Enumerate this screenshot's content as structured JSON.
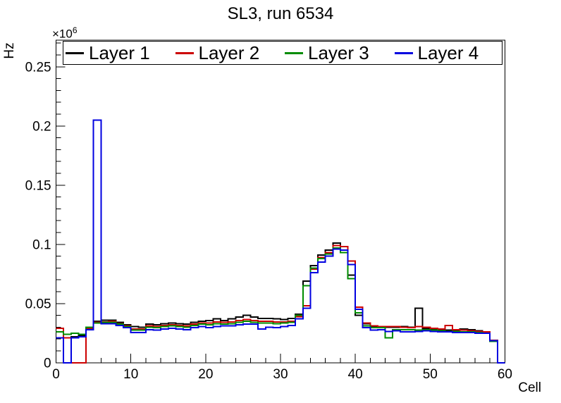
{
  "title": "SL3, run 6534",
  "axes": {
    "x_title": "Cell",
    "y_title": "Hz",
    "y_power_base": "×10",
    "y_power_exp": "6"
  },
  "legend": {
    "entries": [
      {
        "label": "Layer 1",
        "color": "#000000"
      },
      {
        "label": "Layer 2",
        "color": "#cc0000"
      },
      {
        "label": "Layer 3",
        "color": "#008c00"
      },
      {
        "label": "Layer 4",
        "color": "#0000e0"
      }
    ]
  },
  "chart_data": {
    "type": "histogram-step",
    "title": "SL3, run 6534",
    "xlabel": "Cell",
    "ylabel": "Hz",
    "y_units_multiplier": "1e6",
    "xlim": [
      0,
      60
    ],
    "ylim": [
      0,
      0.2724
    ],
    "xticks": [
      0,
      10,
      20,
      30,
      40,
      50,
      60
    ],
    "x_minor_step": 2,
    "yticks": [
      0,
      0.05,
      0.1,
      0.15,
      0.2,
      0.25
    ],
    "ytick_labels": [
      "0",
      "0.05",
      "0.1",
      "0.15",
      "0.2",
      "0.25"
    ],
    "y_minor_step": 0.01,
    "bin_width": 1,
    "grid": false,
    "legend_position": "top",
    "series": [
      {
        "name": "Layer 1",
        "color": "#000000",
        "values": [
          0.029,
          0.021,
          0.022,
          0.023,
          0.03,
          0.035,
          0.036,
          0.036,
          0.034,
          0.032,
          0.0305,
          0.03,
          0.0325,
          0.032,
          0.033,
          0.0335,
          0.033,
          0.0325,
          0.034,
          0.035,
          0.0355,
          0.037,
          0.0355,
          0.037,
          0.0385,
          0.04,
          0.0385,
          0.0375,
          0.0375,
          0.037,
          0.0365,
          0.0375,
          0.041,
          0.069,
          0.082,
          0.091,
          0.095,
          0.101,
          0.098,
          0.074,
          0.04,
          0.033,
          0.0305,
          0.03,
          0.03,
          0.03,
          0.0305,
          0.03,
          0.046,
          0.029,
          0.0285,
          0.028,
          0.0275,
          0.0275,
          0.0285,
          0.028,
          0.027,
          0.026,
          0.019,
          0.0
        ]
      },
      {
        "name": "Layer 2",
        "color": "#cc0000",
        "values": [
          0.029,
          0.021,
          0.0,
          0.0,
          0.029,
          0.034,
          0.0345,
          0.035,
          0.033,
          0.031,
          0.0285,
          0.0285,
          0.031,
          0.0305,
          0.0315,
          0.032,
          0.0315,
          0.031,
          0.0325,
          0.0335,
          0.0335,
          0.0345,
          0.034,
          0.0345,
          0.0355,
          0.0365,
          0.0355,
          0.035,
          0.035,
          0.0345,
          0.0345,
          0.035,
          0.039,
          0.048,
          0.079,
          0.089,
          0.093,
          0.099,
          0.098,
          0.086,
          0.047,
          0.0335,
          0.031,
          0.0305,
          0.0305,
          0.0305,
          0.03,
          0.0295,
          0.0305,
          0.03,
          0.029,
          0.0285,
          0.0315,
          0.028,
          0.0275,
          0.027,
          0.0265,
          0.026,
          0.019,
          0.0
        ]
      },
      {
        "name": "Layer 3",
        "color": "#008c00",
        "values": [
          0.026,
          0.024,
          0.025,
          0.024,
          0.03,
          0.0335,
          0.034,
          0.034,
          0.0325,
          0.0305,
          0.0275,
          0.0275,
          0.03,
          0.0295,
          0.0305,
          0.031,
          0.0305,
          0.03,
          0.0315,
          0.0325,
          0.032,
          0.033,
          0.0325,
          0.033,
          0.034,
          0.035,
          0.034,
          0.0335,
          0.0335,
          0.033,
          0.0335,
          0.034,
          0.04,
          0.065,
          0.08,
          0.088,
          0.092,
          0.097,
          0.093,
          0.071,
          0.042,
          0.031,
          0.0295,
          0.0295,
          0.021,
          0.028,
          0.028,
          0.028,
          0.0275,
          0.028,
          0.0275,
          0.027,
          0.0265,
          0.0265,
          0.026,
          0.026,
          0.0255,
          0.025,
          0.018,
          0.0
        ]
      },
      {
        "name": "Layer 4",
        "color": "#0000e0",
        "values": [
          0.021,
          0.0,
          0.021,
          0.022,
          0.028,
          0.205,
          0.033,
          0.033,
          0.0315,
          0.0295,
          0.0255,
          0.0255,
          0.028,
          0.0275,
          0.0285,
          0.029,
          0.0285,
          0.028,
          0.0295,
          0.0305,
          0.0295,
          0.0305,
          0.031,
          0.031,
          0.032,
          0.0325,
          0.0325,
          0.0285,
          0.03,
          0.0295,
          0.0305,
          0.0315,
          0.037,
          0.046,
          0.076,
          0.085,
          0.09,
          0.096,
          0.095,
          0.083,
          0.045,
          0.0295,
          0.0275,
          0.028,
          0.0265,
          0.027,
          0.026,
          0.026,
          0.0265,
          0.027,
          0.0265,
          0.026,
          0.026,
          0.0255,
          0.0255,
          0.0255,
          0.025,
          0.025,
          0.0185,
          0.0
        ]
      }
    ]
  }
}
